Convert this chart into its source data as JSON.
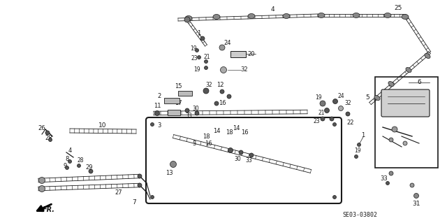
{
  "background_color": "#ffffff",
  "diagram_code": "SE03-03802",
  "line_color": "#1a1a1a",
  "text_color": "#1a1a1a",
  "fr_label": "FR.",
  "figsize": [
    6.4,
    3.19
  ],
  "dpi": 100
}
